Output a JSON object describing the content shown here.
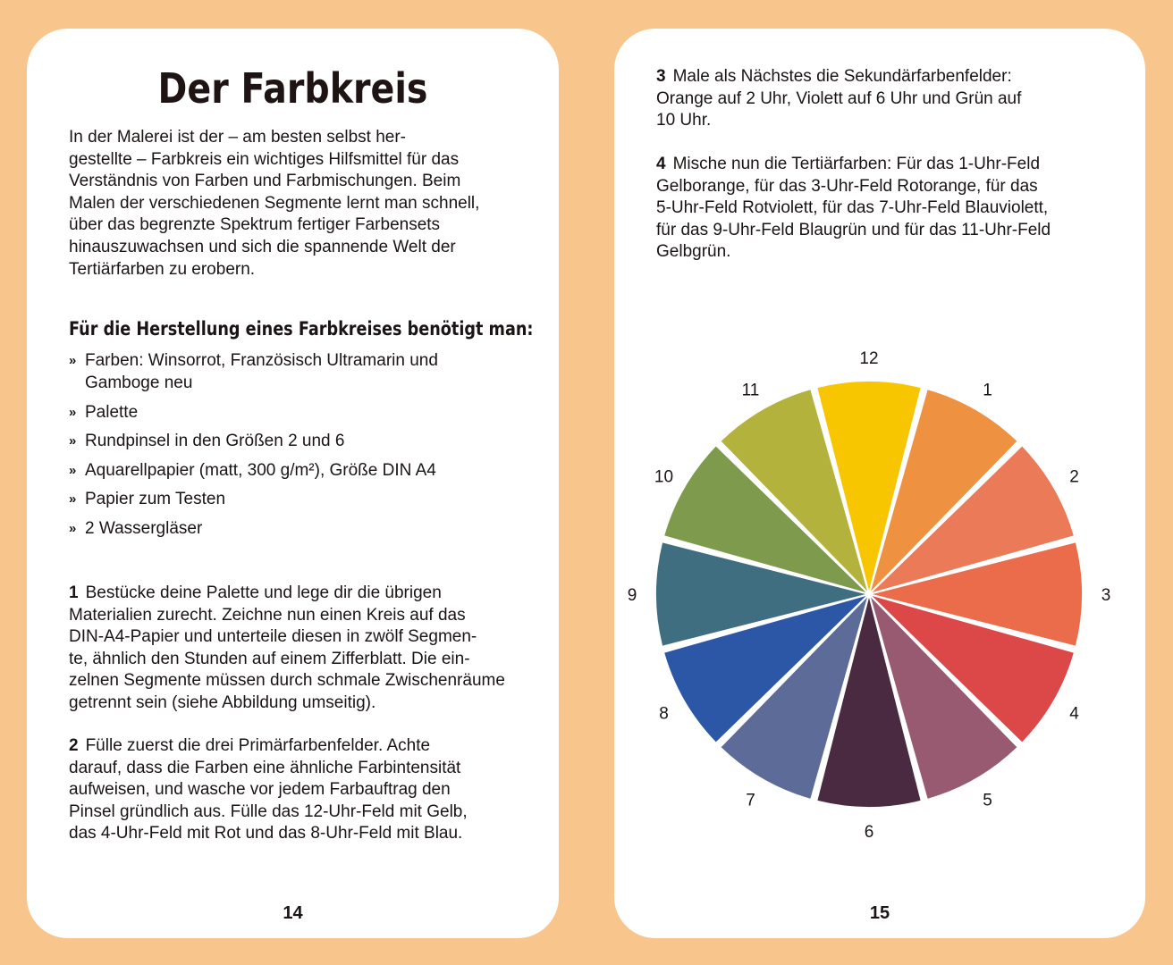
{
  "left_page": {
    "title": "Der Farbkreis",
    "intro_lines": [
      "In der Malerei ist der – am besten selbst her-",
      "gestellte – Farbkreis ein wichtiges Hilfsmittel für das",
      "Verständnis von Farben und Farbmischungen. Beim",
      "Malen der verschiedenen Segmente lernt man schnell,",
      "über das begrenzte Spektrum fertiger Farbensets",
      "hinauszuwachsen und sich die spannende Welt der",
      "Tertiärfarben zu erobern."
    ],
    "materials_heading": "Für die Herstellung eines Farbkreises benötigt man:",
    "bullet": "»",
    "materials": [
      "Farben: Winsorrot, Französisch Ultramarin und",
      "Gamboge neu",
      "Palette",
      "Rundpinsel in den Größen 2 und 6",
      "Aquarellpapier (matt, 300 g/m²), Größe DIN A4",
      "Papier zum Testen",
      "2 Wassergläser"
    ],
    "step1": {
      "number": "1",
      "lines": [
        "Bestücke deine Palette und lege dir die übrigen",
        "Materialien zurecht. Zeichne nun einen Kreis auf das",
        "DIN-A4-Papier und unterteile diesen in zwölf Segmen-",
        "te, ähnlich den Stunden auf einem Zifferblatt. Die ein-",
        "zelnen Segmente müssen durch schmale Zwischenräume",
        "getrennt sein (siehe Abbildung umseitig)."
      ]
    },
    "step2": {
      "number": "2",
      "lines": [
        "Fülle zuerst die drei Primärfarbenfelder. Achte",
        "darauf, dass die Farben eine ähnliche Farbintensität",
        "aufweisen, und wasche vor jedem Farbauftrag den",
        "Pinsel gründlich aus. Fülle das 12-Uhr-Feld mit Gelb,",
        "das 4-Uhr-Feld mit Rot und das 8-Uhr-Feld mit Blau."
      ]
    },
    "page_number": "14"
  },
  "right_page": {
    "step3": {
      "number": "3",
      "lines": [
        "Male als Nächstes die Sekundärfarbenfelder:",
        "Orange auf 2 Uhr, Violett auf 6 Uhr und Grün auf",
        "10 Uhr."
      ]
    },
    "step4": {
      "number": "4",
      "lines": [
        "Mische nun die Tertiärfarben: Für das 1-Uhr-Feld",
        "Gelborange, für das 3-Uhr-Feld Rotorange, für das",
        "5-Uhr-Feld Rotviolett, für das 7-Uhr-Feld Blauviolett,",
        "für das 9-Uhr-Feld Blaugrün und für das 11-Uhr-Feld",
        "Gelbgrün."
      ]
    },
    "color_wheel": {
      "segments": [
        {
          "label": "12",
          "color": "#f7c600"
        },
        {
          "label": "1",
          "color": "#ee9242"
        },
        {
          "label": "2",
          "color": "#ea7a58"
        },
        {
          "label": "3",
          "color": "#ea6c4a"
        },
        {
          "label": "4",
          "color": "#dc4848"
        },
        {
          "label": "5",
          "color": "#985a70"
        },
        {
          "label": "6",
          "color": "#4a2a40"
        },
        {
          "label": "7",
          "color": "#5d6b98"
        },
        {
          "label": "8",
          "color": "#2b57a6"
        },
        {
          "label": "9",
          "color": "#3f6e80"
        },
        {
          "label": "10",
          "color": "#7e9a4c"
        },
        {
          "label": "11",
          "color": "#b2b23c"
        }
      ]
    },
    "page_number": "15"
  }
}
